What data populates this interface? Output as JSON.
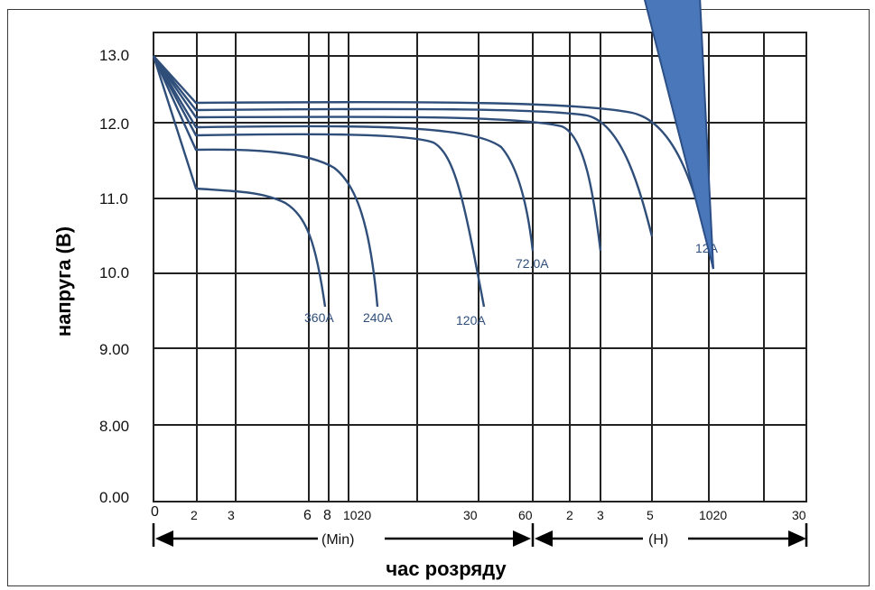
{
  "chart_data": {
    "type": "line",
    "ylabel": "напруга (В)",
    "xlabel": "час розряду",
    "y_ticks": [
      "13.0",
      "12.0",
      "11.0",
      "10.0",
      "9.00",
      "8.00",
      "0.00"
    ],
    "x_ticks": [
      "0",
      "2",
      "3",
      "6",
      "8",
      "1020",
      "30",
      "60",
      "2",
      "3",
      "5",
      "1020",
      "30"
    ],
    "x_units": [
      "(Min)",
      "(H)"
    ],
    "x_scale": "log (minutes, then hours)",
    "grid": true,
    "series": [
      {
        "name": "360A",
        "end_time": "≈8 min",
        "end_voltage": 9.6
      },
      {
        "name": "240A",
        "end_time": "≈20 min",
        "end_voltage": 9.6
      },
      {
        "name": "120A",
        "end_time": "≈32 min",
        "end_voltage": 9.6
      },
      {
        "name": "72.0A",
        "end_time": "≈60 min",
        "end_voltage": 10.3
      },
      {
        "name": "",
        "end_time": "≈3 h",
        "end_voltage": 10.3
      },
      {
        "name": "",
        "end_time": "≈5 h",
        "end_voltage": 10.5
      },
      {
        "name": "12A",
        "end_time": "≈10 h",
        "end_voltage": 10.5
      }
    ],
    "colors": {
      "curve": "#2f4e79",
      "callout": "#4a77b9",
      "callout_border": "#2b4f86"
    }
  }
}
